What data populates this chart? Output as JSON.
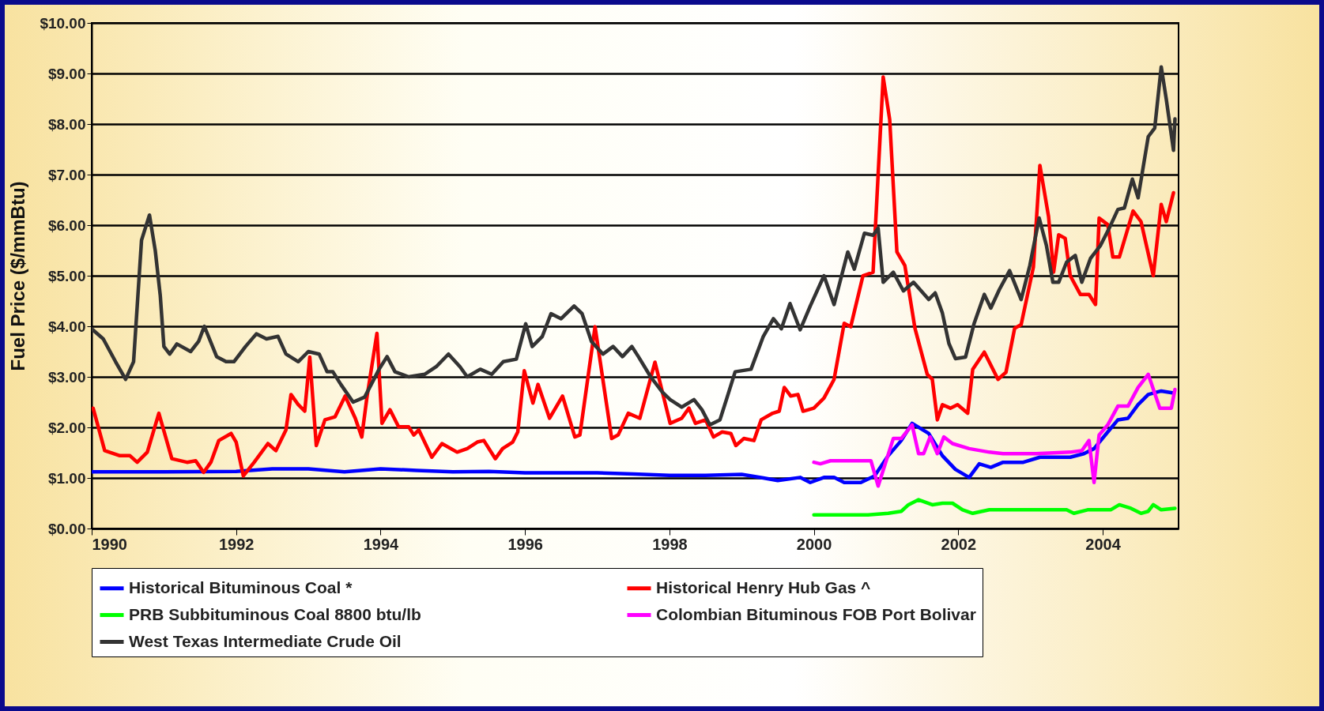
{
  "chart_data": {
    "type": "line",
    "ylabel": "Fuel Price ($/mmBtu)",
    "xlim": [
      1990,
      2005.05
    ],
    "xticks": [
      1990,
      1992,
      1994,
      1996,
      1998,
      2000,
      2002,
      2004
    ],
    "ylim": [
      0,
      10
    ],
    "yticks": [
      {
        "value": 0,
        "label": "$0.00"
      },
      {
        "value": 1,
        "label": "$1.00"
      },
      {
        "value": 2,
        "label": "$2.00"
      },
      {
        "value": 3,
        "label": "$3.00"
      },
      {
        "value": 4,
        "label": "$4.00"
      },
      {
        "value": 5,
        "label": "$5.00"
      },
      {
        "value": 6,
        "label": "$6.00"
      },
      {
        "value": 7,
        "label": "$7.00"
      },
      {
        "value": 8,
        "label": "$8.00"
      },
      {
        "value": 9,
        "label": "$9.00"
      },
      {
        "value": 10,
        "label": "$10.00"
      }
    ],
    "grid": "y",
    "legend": "bottom",
    "series": [
      {
        "name": "Historical Bituminous Coal *",
        "color": "#0000ff",
        "x": [
          1990,
          1991,
          1992,
          1992.5,
          1993,
          1993.5,
          1994,
          1994.5,
          1995,
          1995.5,
          1996,
          1996.5,
          1997,
          1997.5,
          1998,
          1998.5,
          1999,
          1999.3,
          1999.5,
          1999.81,
          1999.95,
          2000.14,
          2000.28,
          2000.42,
          2000.65,
          2000.84,
          2001.03,
          2001.21,
          2001.36,
          2001.59,
          2001.78,
          2001.96,
          2002.15,
          2002.29,
          2002.45,
          2002.62,
          2002.9,
          2003.13,
          2003.36,
          2003.55,
          2003.74,
          2003.88,
          2004.07,
          2004.21,
          2004.35,
          2004.49,
          2004.63,
          2004.81,
          2004.98
        ],
        "values": [
          1.12,
          1.12,
          1.13,
          1.18,
          1.18,
          1.12,
          1.18,
          1.15,
          1.12,
          1.13,
          1.1,
          1.1,
          1.1,
          1.08,
          1.05,
          1.05,
          1.07,
          1.0,
          0.95,
          1.01,
          0.91,
          1.01,
          1.01,
          0.91,
          0.91,
          1.04,
          1.44,
          1.74,
          2.08,
          1.88,
          1.44,
          1.17,
          1.01,
          1.28,
          1.21,
          1.31,
          1.31,
          1.41,
          1.41,
          1.41,
          1.48,
          1.58,
          1.91,
          2.15,
          2.18,
          2.45,
          2.65,
          2.72,
          2.68
        ]
      },
      {
        "name": "Historical Henry Hub Gas ^",
        "color": "#ff0000",
        "x": [
          1990.02,
          1990.18,
          1990.39,
          1990.53,
          1990.63,
          1990.77,
          1990.93,
          1991.11,
          1991.32,
          1991.44,
          1991.55,
          1991.65,
          1991.76,
          1991.93,
          1992,
          1992.1,
          1992.25,
          1992.44,
          1992.55,
          1992.69,
          1992.76,
          1992.86,
          1992.95,
          1993.02,
          1993.11,
          1993.23,
          1993.37,
          1993.51,
          1993.65,
          1993.74,
          1993.81,
          1993.95,
          1994.02,
          1994.13,
          1994.25,
          1994.39,
          1994.46,
          1994.53,
          1994.71,
          1994.85,
          1995.06,
          1995.2,
          1995.34,
          1995.43,
          1995.59,
          1995.69,
          1995.83,
          1995.9,
          1995.99,
          1996.11,
          1996.18,
          1996.34,
          1996.52,
          1996.69,
          1996.76,
          1996.97,
          1997.2,
          1997.29,
          1997.43,
          1997.59,
          1997.8,
          1998.01,
          1998.17,
          1998.27,
          1998.36,
          1998.5,
          1998.61,
          1998.73,
          1998.85,
          1998.92,
          1999.03,
          1999.17,
          1999.27,
          1999.43,
          1999.52,
          1999.59,
          1999.68,
          1999.78,
          1999.85,
          2000,
          2000.14,
          2000.28,
          2000.42,
          2000.51,
          2000.68,
          2000.82,
          2000.96,
          2001.05,
          2001.15,
          2001.26,
          2001.4,
          2001.57,
          2001.64,
          2001.71,
          2001.78,
          2001.89,
          2001.99,
          2002.13,
          2002.2,
          2002.36,
          2002.55,
          2002.66,
          2002.78,
          2002.87,
          2003.04,
          2003.13,
          2003.25,
          2003.32,
          2003.39,
          2003.48,
          2003.55,
          2003.69,
          2003.81,
          2003.9,
          2003.95,
          2004.07,
          2004.14,
          2004.23,
          2004.42,
          2004.53,
          2004.7,
          2004.81,
          2004.88,
          2004.98
        ],
        "values": [
          2.38,
          1.54,
          1.44,
          1.44,
          1.31,
          1.51,
          2.28,
          1.38,
          1.31,
          1.34,
          1.11,
          1.31,
          1.74,
          1.88,
          1.71,
          1.04,
          1.31,
          1.68,
          1.54,
          1.95,
          2.65,
          2.45,
          2.32,
          3.39,
          1.64,
          2.15,
          2.21,
          2.62,
          2.18,
          1.81,
          2.58,
          3.86,
          2.08,
          2.35,
          2.01,
          2.01,
          1.85,
          1.95,
          1.41,
          1.68,
          1.51,
          1.58,
          1.71,
          1.74,
          1.38,
          1.58,
          1.71,
          1.91,
          3.12,
          2.48,
          2.85,
          2.18,
          2.62,
          1.81,
          1.85,
          3.99,
          1.78,
          1.85,
          2.28,
          2.18,
          3.29,
          2.08,
          2.18,
          2.38,
          2.08,
          2.15,
          1.81,
          1.91,
          1.88,
          1.64,
          1.78,
          1.74,
          2.15,
          2.28,
          2.32,
          2.79,
          2.62,
          2.65,
          2.32,
          2.38,
          2.58,
          2.95,
          4.06,
          3.99,
          5.0,
          5.07,
          8.93,
          8.09,
          5.47,
          5.2,
          3.96,
          3.05,
          2.95,
          2.15,
          2.45,
          2.38,
          2.45,
          2.28,
          3.15,
          3.49,
          2.95,
          3.09,
          3.96,
          4.03,
          5.17,
          7.18,
          6.17,
          5.07,
          5.81,
          5.74,
          5.0,
          4.63,
          4.63,
          4.43,
          6.14,
          6.01,
          5.37,
          5.37,
          6.28,
          6.07,
          5.0,
          6.41,
          6.07,
          6.64
        ]
      },
      {
        "name": "PRB Subbituminous Coal 8800 btu/lb",
        "color": "#00ff00",
        "x": [
          2000,
          2000.75,
          2001.03,
          2001.21,
          2001.31,
          2001.45,
          2001.64,
          2001.78,
          2001.92,
          2002.06,
          2002.2,
          2002.43,
          2003.08,
          2003.5,
          2003.6,
          2003.79,
          2004.11,
          2004.23,
          2004.39,
          2004.53,
          2004.63,
          2004.7,
          2004.81,
          2005
        ],
        "values": [
          0.27,
          0.27,
          0.3,
          0.34,
          0.47,
          0.57,
          0.47,
          0.5,
          0.5,
          0.37,
          0.3,
          0.37,
          0.37,
          0.37,
          0.3,
          0.37,
          0.37,
          0.47,
          0.4,
          0.3,
          0.34,
          0.47,
          0.37,
          0.4
        ]
      },
      {
        "name": "Colombian Bituminous FOB Port Bolivar",
        "color": "#ff00ff",
        "x": [
          2000,
          2000.09,
          2000.23,
          2000.37,
          2000.65,
          2000.79,
          2000.89,
          2001.1,
          2001.21,
          2001.36,
          2001.45,
          2001.52,
          2001.61,
          2001.71,
          2001.8,
          2001.92,
          2002.15,
          2002.43,
          2002.62,
          2003.08,
          2003.55,
          2003.71,
          2003.81,
          2003.88,
          2003.95,
          2004.07,
          2004.21,
          2004.35,
          2004.49,
          2004.63,
          2004.79,
          2004.95,
          2005
        ],
        "values": [
          1.31,
          1.28,
          1.34,
          1.34,
          1.34,
          1.34,
          0.84,
          1.78,
          1.78,
          2.05,
          1.48,
          1.48,
          1.81,
          1.48,
          1.81,
          1.68,
          1.58,
          1.51,
          1.48,
          1.48,
          1.51,
          1.54,
          1.74,
          0.91,
          1.85,
          2.05,
          2.42,
          2.42,
          2.79,
          3.05,
          2.38,
          2.38,
          2.75
        ]
      },
      {
        "name": "West Texas Intermediate Crude Oil",
        "color": "#333333",
        "x": [
          1990,
          1990.16,
          1990.33,
          1990.47,
          1990.58,
          1990.69,
          1990.8,
          1990.88,
          1990.95,
          1991.0,
          1991.08,
          1991.18,
          1991.37,
          1991.48,
          1991.56,
          1991.73,
          1991.86,
          1991.97,
          1992.13,
          1992.28,
          1992.42,
          1992.58,
          1992.69,
          1992.86,
          1993.0,
          1993.15,
          1993.26,
          1993.34,
          1993.45,
          1993.62,
          1993.78,
          1993.98,
          1994.09,
          1994.2,
          1994.39,
          1994.61,
          1994.77,
          1994.94,
          1995.1,
          1995.2,
          1995.38,
          1995.54,
          1995.7,
          1995.88,
          1996.01,
          1996.1,
          1996.24,
          1996.36,
          1996.5,
          1996.68,
          1996.79,
          1996.92,
          1997.08,
          1997.22,
          1997.35,
          1997.48,
          1997.57,
          1997.74,
          1997.9,
          1998.01,
          1998.17,
          1998.34,
          1998.45,
          1998.56,
          1998.7,
          1998.8,
          1998.91,
          1999.13,
          1999.3,
          1999.44,
          1999.55,
          1999.67,
          1999.81,
          1999.95,
          2000.14,
          2000.28,
          2000.47,
          2000.56,
          2000.7,
          2000.82,
          2000.89,
          2000.96,
          2001.1,
          2001.24,
          2001.38,
          2001.59,
          2001.68,
          2001.78,
          2001.87,
          2001.96,
          2002.1,
          2002.22,
          2002.36,
          2002.45,
          2002.57,
          2002.71,
          2002.87,
          2002.99,
          2003.12,
          2003.22,
          2003.31,
          2003.39,
          2003.5,
          2003.62,
          2003.71,
          2003.83,
          2003.97,
          2004.09,
          2004.21,
          2004.3,
          2004.41,
          2004.49,
          2004.63,
          2004.72,
          2004.81,
          2004.88,
          2004.98,
          2005
        ],
        "values": [
          3.95,
          3.75,
          3.3,
          2.95,
          3.3,
          5.7,
          6.2,
          5.5,
          4.6,
          3.6,
          3.45,
          3.65,
          3.5,
          3.7,
          4.0,
          3.4,
          3.3,
          3.3,
          3.6,
          3.85,
          3.75,
          3.8,
          3.45,
          3.3,
          3.5,
          3.45,
          3.1,
          3.1,
          2.85,
          2.5,
          2.6,
          3.15,
          3.4,
          3.1,
          3.0,
          3.05,
          3.2,
          3.45,
          3.2,
          3.0,
          3.15,
          3.05,
          3.3,
          3.35,
          4.05,
          3.6,
          3.8,
          4.25,
          4.15,
          4.4,
          4.25,
          3.7,
          3.45,
          3.6,
          3.4,
          3.6,
          3.4,
          3.0,
          2.7,
          2.55,
          2.4,
          2.55,
          2.35,
          2.05,
          2.15,
          2.6,
          3.1,
          3.15,
          3.8,
          4.15,
          3.95,
          4.45,
          3.93,
          4.4,
          5.0,
          4.43,
          5.47,
          5.13,
          5.84,
          5.8,
          5.94,
          4.87,
          5.07,
          4.7,
          4.87,
          4.53,
          4.66,
          4.26,
          3.66,
          3.36,
          3.39,
          4.06,
          4.63,
          4.36,
          4.73,
          5.1,
          4.53,
          5.2,
          6.14,
          5.6,
          4.87,
          4.87,
          5.27,
          5.4,
          4.87,
          5.34,
          5.6,
          5.94,
          6.31,
          6.34,
          6.91,
          6.54,
          7.75,
          7.92,
          9.13,
          8.49,
          7.48,
          8.1
        ]
      }
    ]
  }
}
